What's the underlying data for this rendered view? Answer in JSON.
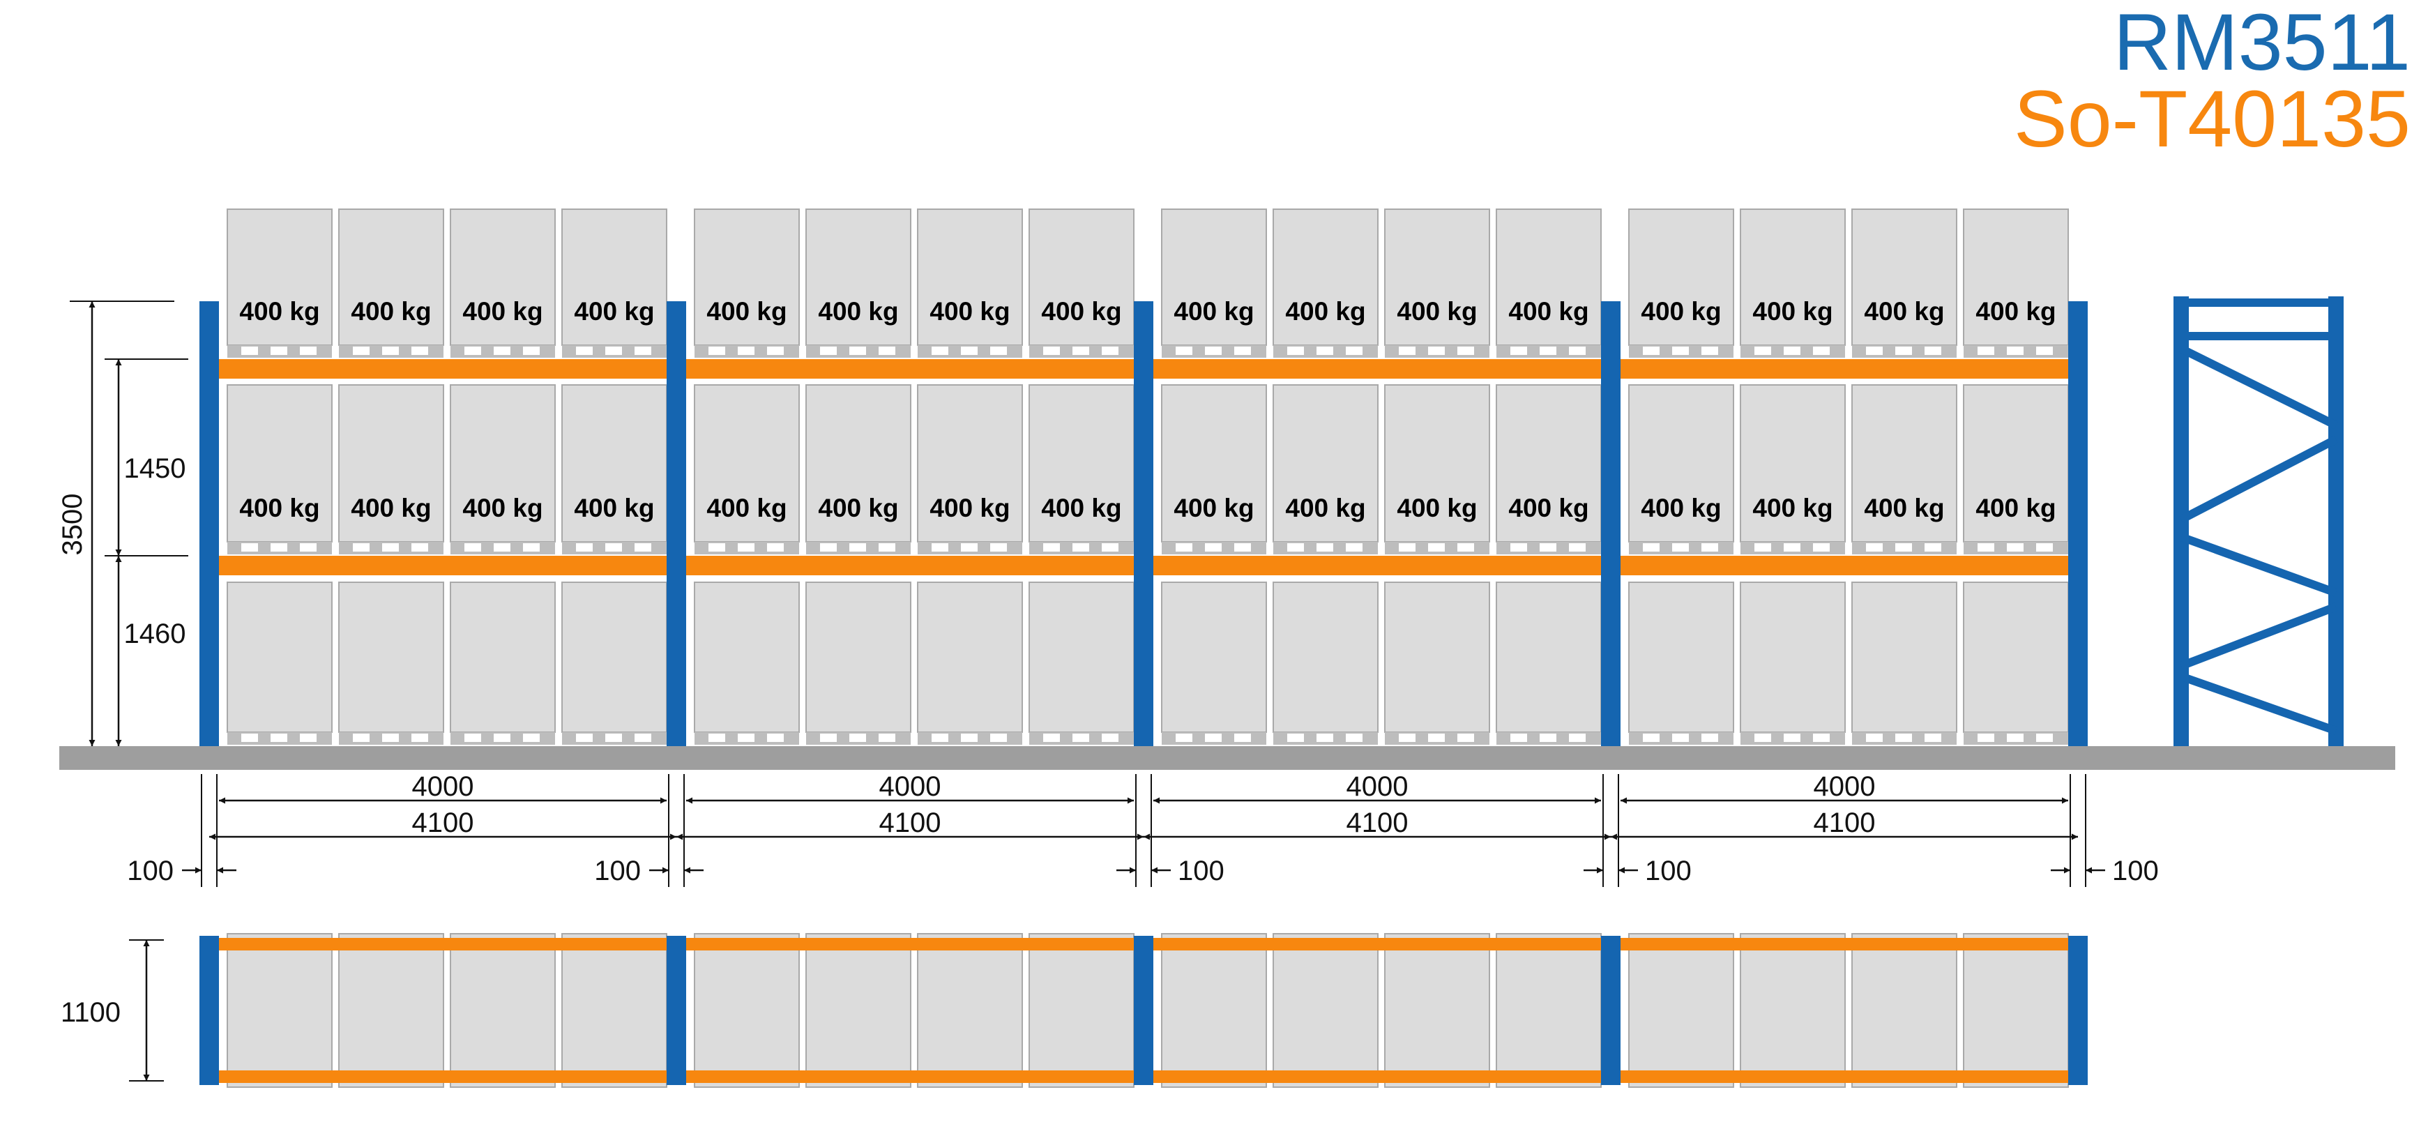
{
  "header": {
    "model": "RM3511",
    "code": "So-T40135"
  },
  "colors": {
    "upright": "#1565b0",
    "beam": "#f7870f",
    "pallet_fill": "#dcdcdc",
    "pallet_stroke": "#a9a9a9",
    "floor": "#9e9e9e",
    "model_text": "#1a6bb0",
    "code_text": "#f7870f"
  },
  "rack": {
    "bays": 4,
    "pallets_per_bay": 4,
    "load_label": "400 kg",
    "loaded_levels": 2
  },
  "dimensions": {
    "total_height": "3500",
    "level_upper": "1450",
    "level_lower": "1460",
    "beam_length": "4000",
    "bay_pitch": "4100",
    "gap": "100",
    "depth": "1100"
  }
}
